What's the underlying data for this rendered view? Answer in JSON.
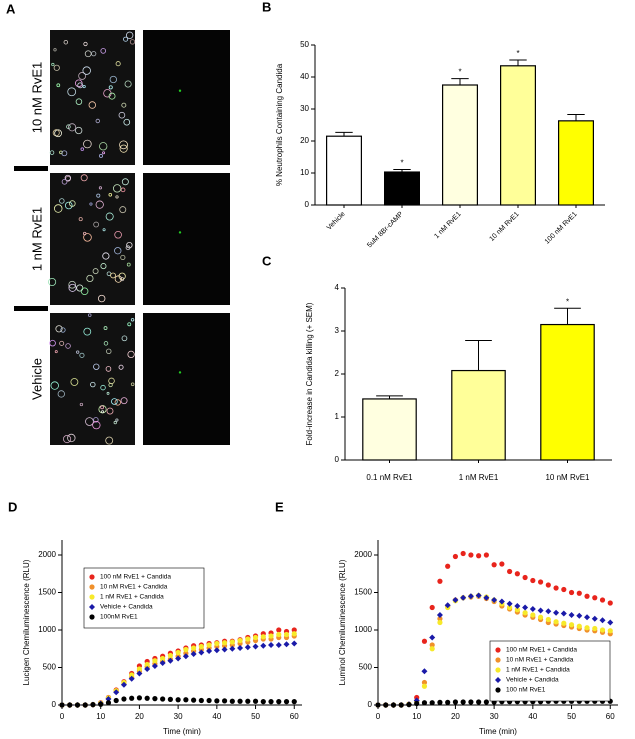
{
  "panel_a": {
    "label": "A",
    "rows": [
      "10 nM RvE1",
      "1 nM RvE1",
      "Vehicle"
    ]
  },
  "chart_data": [
    {
      "type": "bar",
      "panel": "B",
      "ylabel": "% Neutrophils Containing Candida",
      "categories": [
        "Vehicle",
        "5uM 8Br-cAMP",
        "1 nM RvE1",
        "10 nM RvE1",
        "100 nM RvE1"
      ],
      "values": [
        21.5,
        10.3,
        37.5,
        43.5,
        26.3
      ],
      "errors": [
        1.2,
        0.8,
        2.0,
        1.8,
        2.0
      ],
      "colors": [
        "#ffffff",
        "#000000",
        "#ffffe0",
        "#ffff99",
        "#ffff00"
      ],
      "annotations": [
        null,
        "*",
        "*",
        "*",
        null
      ],
      "ylim": [
        0,
        50
      ],
      "yticks": [
        0,
        10,
        20,
        30,
        40,
        50
      ]
    },
    {
      "type": "bar",
      "panel": "C",
      "ylabel": "Fold-increase in Candida killing (+ SEM)",
      "categories": [
        "0.1 nM RvE1",
        "1 nM RvE1",
        "10 nM RvE1"
      ],
      "values": [
        1.42,
        2.08,
        3.15
      ],
      "errors": [
        0.07,
        0.7,
        0.38
      ],
      "colors": [
        "#ffffe0",
        "#ffff99",
        "#ffff00"
      ],
      "annotations": [
        null,
        null,
        "*"
      ],
      "ylim": [
        0,
        4
      ],
      "yticks": [
        0,
        1,
        2,
        3,
        4
      ]
    },
    {
      "type": "scatter",
      "panel": "D",
      "ylabel": "Lucigen Chemiluminescence (RLU)",
      "xlabel": "Time (min)",
      "legend": "upper-left",
      "x": [
        0,
        2,
        4,
        6,
        8,
        10,
        12,
        14,
        16,
        18,
        20,
        22,
        24,
        26,
        28,
        30,
        32,
        34,
        36,
        38,
        40,
        42,
        44,
        46,
        48,
        50,
        52,
        54,
        56,
        58,
        60
      ],
      "xlim": [
        0,
        62
      ],
      "xticks": [
        0,
        10,
        20,
        30,
        40,
        50,
        60
      ],
      "ylim": [
        0,
        2200
      ],
      "yticks": [
        0,
        500,
        1000,
        1500,
        2000
      ],
      "series": [
        {
          "name": "100 nM RvE1 + Candida",
          "color": "#e8241c",
          "marker": "circle",
          "values": [
            0,
            0,
            0,
            0,
            5,
            30,
            100,
            200,
            310,
            420,
            520,
            580,
            620,
            650,
            690,
            720,
            760,
            790,
            800,
            820,
            830,
            850,
            850,
            870,
            900,
            920,
            950,
            960,
            1000,
            980,
            1000
          ]
        },
        {
          "name": "10 nM RvE1 + Candida",
          "color": "#f0902a",
          "marker": "circle",
          "values": [
            0,
            0,
            0,
            0,
            5,
            25,
            90,
            180,
            280,
            370,
            450,
            510,
            550,
            580,
            610,
            650,
            690,
            720,
            740,
            760,
            780,
            790,
            800,
            820,
            840,
            860,
            880,
            880,
            900,
            900,
            920
          ]
        },
        {
          "name": "1 nM RvE1 + Candida",
          "color": "#f7e92a",
          "marker": "circle",
          "values": [
            0,
            0,
            0,
            0,
            5,
            25,
            95,
            190,
            300,
            400,
            480,
            540,
            590,
            620,
            660,
            700,
            740,
            760,
            780,
            800,
            820,
            830,
            840,
            860,
            880,
            900,
            910,
            920,
            940,
            940,
            950
          ]
        },
        {
          "name": "Vehicle + Candida",
          "color": "#1a1aa8",
          "marker": "diamond",
          "values": [
            0,
            0,
            0,
            0,
            5,
            20,
            80,
            170,
            270,
            350,
            420,
            480,
            520,
            560,
            590,
            620,
            650,
            680,
            700,
            720,
            730,
            740,
            750,
            760,
            770,
            780,
            790,
            800,
            800,
            810,
            820
          ]
        },
        {
          "name": "100nM RvE1",
          "color": "#000000",
          "marker": "circle",
          "values": [
            0,
            0,
            0,
            0,
            5,
            10,
            30,
            60,
            80,
            90,
            95,
            90,
            85,
            80,
            75,
            70,
            70,
            65,
            60,
            60,
            55,
            55,
            50,
            50,
            50,
            50,
            45,
            45,
            45,
            45,
            45
          ]
        }
      ]
    },
    {
      "type": "scatter",
      "panel": "E",
      "ylabel": "Luminol Chemiluminescence (RLU)",
      "xlabel": "Time (min)",
      "legend": "lower-right",
      "x": [
        0,
        2,
        4,
        6,
        8,
        10,
        12,
        14,
        16,
        18,
        20,
        22,
        24,
        26,
        28,
        30,
        32,
        34,
        36,
        38,
        40,
        42,
        44,
        46,
        48,
        50,
        52,
        54,
        56,
        58,
        60
      ],
      "xlim": [
        0,
        62
      ],
      "xticks": [
        0,
        10,
        20,
        30,
        40,
        50,
        60
      ],
      "ylim": [
        0,
        2200
      ],
      "yticks": [
        0,
        500,
        1000,
        1500,
        2000
      ],
      "series": [
        {
          "name": "100 nM RvE1 + Candida",
          "color": "#e8241c",
          "marker": "circle",
          "values": [
            0,
            0,
            0,
            0,
            10,
            100,
            850,
            1300,
            1650,
            1850,
            1980,
            2020,
            2000,
            1990,
            2000,
            1870,
            1880,
            1780,
            1750,
            1700,
            1660,
            1640,
            1600,
            1560,
            1540,
            1500,
            1490,
            1450,
            1430,
            1400,
            1360
          ]
        },
        {
          "name": "10 nM RvE1 + Candida",
          "color": "#f0902a",
          "marker": "circle",
          "values": [
            0,
            0,
            0,
            0,
            10,
            50,
            300,
            800,
            1150,
            1320,
            1400,
            1430,
            1440,
            1450,
            1420,
            1380,
            1320,
            1280,
            1240,
            1200,
            1170,
            1140,
            1100,
            1080,
            1060,
            1040,
            1020,
            1000,
            990,
            970,
            950
          ]
        },
        {
          "name": "1 nM  RvE1 + Candida",
          "color": "#f7e92a",
          "marker": "circle",
          "values": [
            0,
            0,
            0,
            0,
            10,
            40,
            250,
            750,
            1100,
            1300,
            1390,
            1430,
            1450,
            1460,
            1440,
            1400,
            1350,
            1300,
            1270,
            1230,
            1200,
            1170,
            1140,
            1110,
            1090,
            1070,
            1050,
            1030,
            1020,
            1000,
            990
          ]
        },
        {
          "name": "Vehicle + Candida",
          "color": "#1a1aa8",
          "marker": "diamond",
          "values": [
            0,
            0,
            0,
            0,
            10,
            60,
            450,
            900,
            1200,
            1330,
            1400,
            1430,
            1450,
            1460,
            1430,
            1400,
            1380,
            1350,
            1320,
            1300,
            1280,
            1260,
            1250,
            1230,
            1220,
            1200,
            1190,
            1170,
            1150,
            1130,
            1100
          ]
        },
        {
          "name": "100 nM RvE1",
          "color": "#000000",
          "marker": "circle",
          "values": [
            0,
            0,
            0,
            0,
            5,
            20,
            30,
            30,
            35,
            35,
            40,
            40,
            40,
            40,
            40,
            40,
            45,
            45,
            45,
            45,
            45,
            45,
            50,
            50,
            50,
            50,
            50,
            50,
            50,
            50,
            50
          ]
        }
      ]
    }
  ]
}
